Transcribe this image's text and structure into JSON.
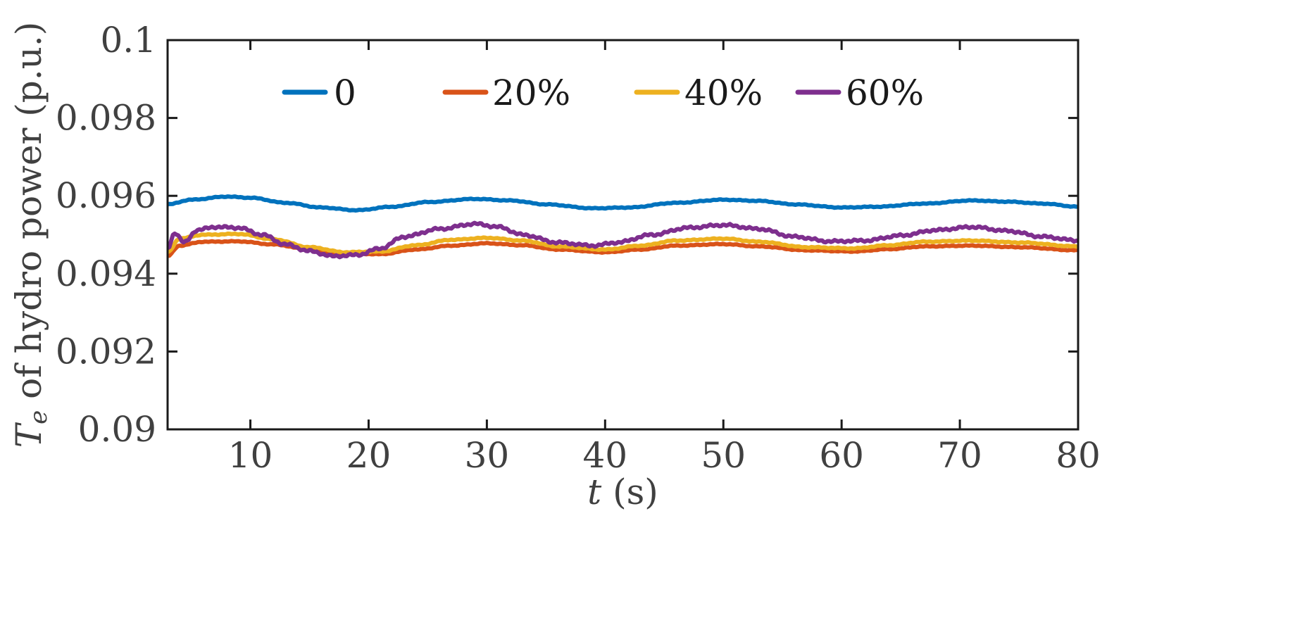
{
  "chart_data": {
    "type": "line",
    "title": "",
    "xlabel_var": "t",
    "xlabel_unit": " (s)",
    "ylabel_var": "T",
    "ylabel_sub": "e",
    "ylabel_rest": " of hydro power (p.u.)",
    "xlim": [
      3,
      80
    ],
    "ylim": [
      0.09,
      0.1
    ],
    "xticks": [
      10,
      20,
      30,
      40,
      50,
      60,
      70,
      80
    ],
    "yticks": [
      0.09,
      0.092,
      0.094,
      0.096,
      0.098,
      0.1
    ],
    "ytick_labels": [
      "0.09",
      "0.092",
      "0.094",
      "0.096",
      "0.098",
      "0.1"
    ],
    "xtick_labels": [
      "10",
      "20",
      "30",
      "40",
      "50",
      "60",
      "70",
      "80"
    ],
    "legend_position": "top",
    "series": [
      {
        "name": "0",
        "color": "#0072BD",
        "x": [
          3,
          5,
          8,
          10,
          13,
          16,
          19,
          22,
          25,
          29,
          32,
          35,
          39,
          42,
          46,
          50,
          53,
          56,
          60,
          63,
          67,
          71,
          74,
          77,
          80
        ],
        "values": [
          0.09578,
          0.0959,
          0.09598,
          0.09595,
          0.09582,
          0.0957,
          0.09563,
          0.09572,
          0.09584,
          0.09592,
          0.09588,
          0.09578,
          0.09568,
          0.0957,
          0.09582,
          0.0959,
          0.09587,
          0.09578,
          0.0957,
          0.09572,
          0.0958,
          0.09588,
          0.09585,
          0.0958,
          0.09572
        ]
      },
      {
        "name": "20%",
        "color": "#D95319",
        "x": [
          3,
          4,
          6,
          9,
          12,
          15,
          18,
          21,
          24,
          27,
          30,
          33,
          36,
          40,
          43,
          46,
          50,
          53,
          57,
          61,
          64,
          67,
          71,
          75,
          80
        ],
        "values": [
          0.09445,
          0.09472,
          0.09482,
          0.09483,
          0.09475,
          0.09462,
          0.09452,
          0.0945,
          0.09462,
          0.09472,
          0.09478,
          0.09473,
          0.09462,
          0.09455,
          0.09462,
          0.09472,
          0.09476,
          0.0947,
          0.0946,
          0.09457,
          0.09463,
          0.0947,
          0.09472,
          0.09468,
          0.0946
        ]
      },
      {
        "name": "40%",
        "color": "#EDB120",
        "x": [
          3,
          4,
          6,
          9,
          12,
          15,
          18,
          21,
          24,
          27,
          30,
          33,
          36,
          40,
          43,
          46,
          50,
          53,
          57,
          61,
          64,
          67,
          71,
          75,
          80
        ],
        "values": [
          0.09455,
          0.0949,
          0.095,
          0.09502,
          0.09488,
          0.09468,
          0.09455,
          0.09457,
          0.09473,
          0.09487,
          0.09492,
          0.09485,
          0.0947,
          0.09462,
          0.09472,
          0.09485,
          0.0949,
          0.09482,
          0.09468,
          0.09465,
          0.09473,
          0.09482,
          0.09485,
          0.0948,
          0.0947
        ]
      },
      {
        "name": "60%",
        "color": "#7E2F8E",
        "x": [
          3,
          3.6,
          4.4,
          5.5,
          7,
          9,
          11,
          13,
          15,
          17,
          19,
          21,
          23,
          26,
          29,
          31,
          33,
          36,
          39,
          41,
          44,
          47,
          50,
          53,
          56,
          59,
          62,
          65,
          68,
          71,
          74,
          77,
          80
        ],
        "values": [
          0.09465,
          0.09505,
          0.0948,
          0.09512,
          0.0952,
          0.09518,
          0.095,
          0.09475,
          0.09458,
          0.09445,
          0.09448,
          0.09465,
          0.09495,
          0.09515,
          0.09528,
          0.0952,
          0.095,
          0.0948,
          0.09472,
          0.0948,
          0.095,
          0.09518,
          0.09525,
          0.09515,
          0.09495,
          0.09483,
          0.09485,
          0.09498,
          0.09512,
          0.0952,
          0.0951,
          0.09495,
          0.09485
        ]
      }
    ]
  }
}
